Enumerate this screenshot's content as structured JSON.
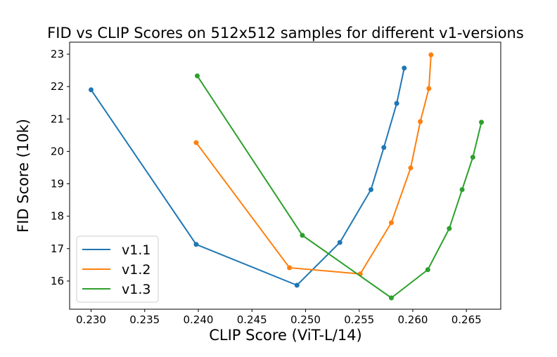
{
  "chart_data": {
    "type": "line",
    "title": "FID vs CLIP Scores on 512x512 samples for different v1-versions",
    "xlabel": "CLIP Score (ViT-L/14)",
    "ylabel": "FID Score (10k)",
    "xlim": [
      0.228,
      0.2682
    ],
    "ylim": [
      15.13,
      23.37
    ],
    "xticks": [
      "0.230",
      "0.235",
      "0.240",
      "0.245",
      "0.250",
      "0.255",
      "0.260",
      "0.265"
    ],
    "xtick_values": [
      0.23,
      0.235,
      0.24,
      0.245,
      0.25,
      0.255,
      0.26,
      0.265
    ],
    "yticks": [
      "16",
      "17",
      "18",
      "19",
      "20",
      "21",
      "22",
      "23"
    ],
    "ytick_values": [
      16,
      17,
      18,
      19,
      20,
      21,
      22,
      23
    ],
    "grid": false,
    "legend_placement": "bottom-left",
    "series": [
      {
        "name": "v1.1",
        "color": "#1f77b4",
        "x": [
          0.23,
          0.2398,
          0.2492,
          0.2532,
          0.2561,
          0.2573,
          0.2585,
          0.2592
        ],
        "y": [
          21.9,
          17.13,
          15.87,
          17.19,
          18.82,
          20.12,
          21.48,
          22.57
        ]
      },
      {
        "name": "v1.2",
        "color": "#ff7f0e",
        "x": [
          0.2398,
          0.2485,
          0.2551,
          0.258,
          0.2598,
          0.2607,
          0.2615,
          0.2617
        ],
        "y": [
          20.27,
          16.41,
          16.22,
          17.8,
          19.49,
          20.92,
          21.94,
          22.98
        ]
      },
      {
        "name": "v1.3",
        "color": "#2ca02c",
        "x": [
          0.2399,
          0.2497,
          0.258,
          0.2614,
          0.2634,
          0.2646,
          0.2656,
          0.2664
        ],
        "y": [
          22.33,
          17.41,
          15.48,
          16.35,
          17.62,
          18.82,
          19.82,
          20.9
        ]
      }
    ]
  }
}
